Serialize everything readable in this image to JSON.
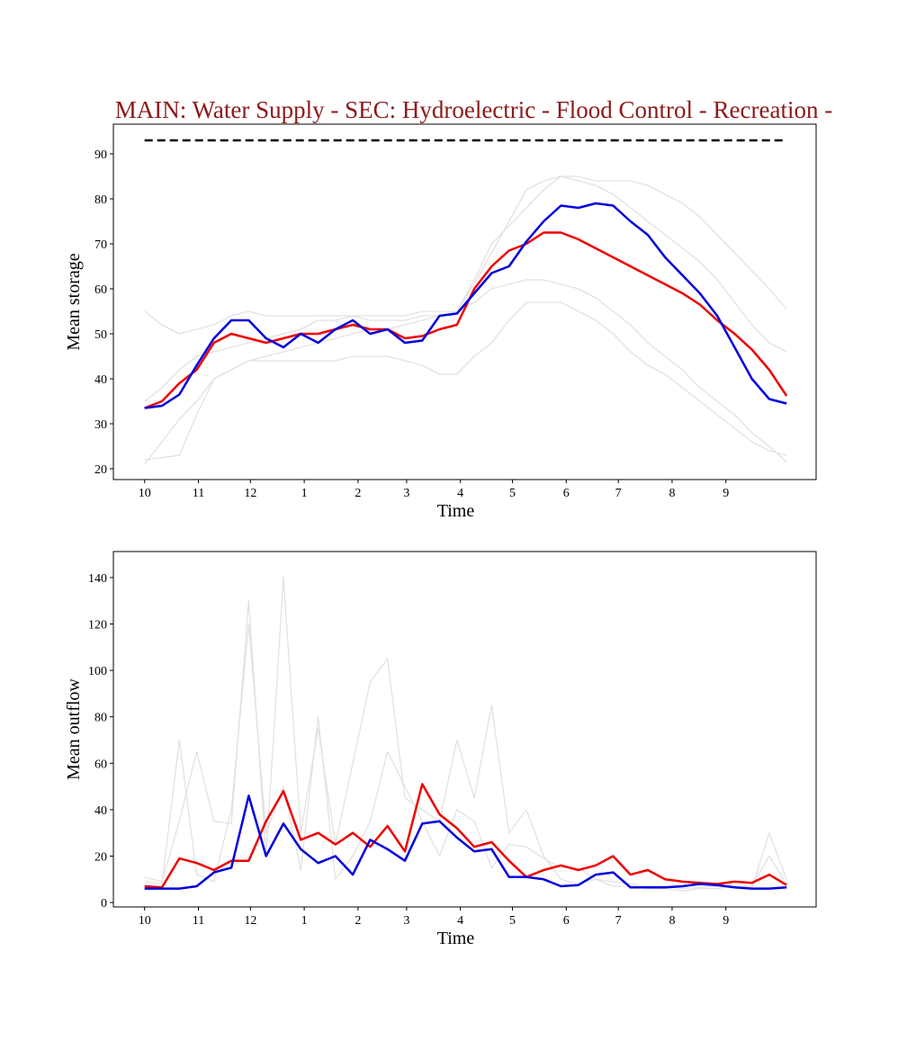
{
  "chart_data": [
    {
      "type": "line",
      "title": "MAIN: Water Supply - SEC: Hydroelectric - Flood Control - Recreation -",
      "title_color": "#8b1a1a",
      "x_label": "Time",
      "y_label": "Mean storage",
      "xlim": [
        -18,
        387
      ],
      "xticks": [
        {
          "value": 0,
          "label": "10"
        },
        {
          "value": 31,
          "label": "11"
        },
        {
          "value": 61,
          "label": "12"
        },
        {
          "value": 92,
          "label": "1"
        },
        {
          "value": 123,
          "label": "2"
        },
        {
          "value": 151,
          "label": "3"
        },
        {
          "value": 182,
          "label": "4"
        },
        {
          "value": 212,
          "label": "5"
        },
        {
          "value": 243,
          "label": "6"
        },
        {
          "value": 273,
          "label": "7"
        },
        {
          "value": 304,
          "label": "8"
        },
        {
          "value": 335,
          "label": "9"
        }
      ],
      "ylim": [
        17.6,
        96.6
      ],
      "yticks": [
        20,
        30,
        40,
        50,
        60,
        70,
        80,
        90
      ],
      "x": [
        0,
        10,
        20,
        30,
        40,
        50,
        60,
        70,
        80,
        90,
        100,
        110,
        120,
        130,
        140,
        150,
        160,
        170,
        180,
        190,
        200,
        210,
        220,
        230,
        240,
        250,
        260,
        270,
        280,
        290,
        300,
        310,
        320,
        330,
        340,
        350,
        360,
        370
      ],
      "series": [
        {
          "color": "#e2e2e2",
          "linewidth": 1.3,
          "values": [
            55,
            52,
            50,
            51,
            52,
            54,
            55,
            54,
            54,
            54,
            54,
            54,
            54,
            53,
            53,
            53,
            54,
            54,
            55,
            62,
            70,
            74,
            78,
            82,
            85,
            85,
            84,
            84,
            84,
            83,
            81,
            79,
            76,
            72,
            68,
            64,
            60,
            55.5
          ]
        },
        {
          "color": "#e2e2e2",
          "linewidth": 1.3,
          "values": [
            22,
            22.5,
            23,
            32,
            40,
            42,
            44,
            45,
            46,
            47,
            48,
            49,
            50,
            51,
            51,
            52,
            53,
            54,
            55,
            57,
            60,
            61,
            62,
            62,
            61,
            60,
            58,
            55,
            52,
            48,
            45,
            42,
            38,
            35,
            32,
            28,
            25,
            21.5
          ]
        },
        {
          "color": "#e2e2e2",
          "linewidth": 1.3,
          "values": [
            21,
            26,
            31,
            35,
            40,
            42,
            44,
            44,
            44,
            44,
            44,
            44,
            45,
            45,
            45,
            44,
            43,
            41,
            41,
            45,
            48,
            53,
            57,
            57,
            57,
            55,
            53,
            50,
            46,
            43,
            41,
            38,
            35,
            32,
            29,
            26,
            24,
            23
          ]
        },
        {
          "color": "#e2e2e2",
          "linewidth": 1.3,
          "values": [
            35,
            38,
            42,
            45,
            46,
            47,
            48,
            49,
            50,
            51,
            53,
            53,
            54,
            54,
            54,
            54,
            55,
            55,
            55,
            61,
            68,
            75,
            82,
            84,
            85,
            84,
            83,
            81,
            78,
            75,
            72,
            69,
            66,
            62,
            57,
            52,
            48,
            46
          ]
        },
        {
          "color": "#000000",
          "linewidth": 2.5,
          "dash": true,
          "values": [
            93,
            93,
            93,
            93,
            93,
            93,
            93,
            93,
            93,
            93,
            93,
            93,
            93,
            93,
            93,
            93,
            93,
            93,
            93,
            93,
            93,
            93,
            93,
            93,
            93,
            93,
            93,
            93,
            93,
            93,
            93,
            93,
            93,
            93,
            93,
            93,
            93,
            93
          ]
        },
        {
          "color": "#ee0000",
          "linewidth": 2.5,
          "values": [
            33.5,
            35,
            39,
            42,
            48,
            50,
            49,
            48,
            49,
            50,
            50,
            51,
            52,
            51,
            51,
            49,
            49.5,
            51,
            52,
            60,
            65,
            68.5,
            70,
            72.5,
            72.5,
            71,
            69,
            67,
            65,
            63,
            61,
            59,
            56.5,
            53,
            50,
            46.5,
            42,
            36.2
          ]
        },
        {
          "color": "#0000dd",
          "linewidth": 2.5,
          "values": [
            33.5,
            34,
            36.5,
            43,
            49,
            53,
            53,
            49,
            47,
            50,
            48,
            51,
            53,
            50,
            51,
            48,
            48.5,
            54,
            54.5,
            59,
            63.5,
            65,
            70.5,
            75,
            78.5,
            78,
            79,
            78.5,
            75,
            72,
            67,
            63,
            59,
            54,
            47,
            40,
            35.5,
            34.5
          ]
        }
      ]
    },
    {
      "type": "line",
      "x_label": "Time",
      "y_label": "Mean outflow",
      "xlim": [
        -18,
        387
      ],
      "xticks": [
        {
          "value": 0,
          "label": "10"
        },
        {
          "value": 31,
          "label": "11"
        },
        {
          "value": 61,
          "label": "12"
        },
        {
          "value": 92,
          "label": "1"
        },
        {
          "value": 123,
          "label": "2"
        },
        {
          "value": 151,
          "label": "3"
        },
        {
          "value": 182,
          "label": "4"
        },
        {
          "value": 212,
          "label": "5"
        },
        {
          "value": 243,
          "label": "6"
        },
        {
          "value": 273,
          "label": "7"
        },
        {
          "value": 304,
          "label": "8"
        },
        {
          "value": 335,
          "label": "9"
        }
      ],
      "ylim": [
        -1.9,
        151.2
      ],
      "yticks": [
        0,
        20,
        40,
        60,
        80,
        100,
        120,
        140
      ],
      "x": [
        0,
        10,
        20,
        30,
        40,
        50,
        60,
        70,
        80,
        90,
        100,
        110,
        120,
        130,
        140,
        150,
        160,
        170,
        180,
        190,
        200,
        210,
        220,
        230,
        240,
        250,
        260,
        270,
        280,
        290,
        300,
        310,
        320,
        330,
        340,
        350,
        360,
        370
      ],
      "series": [
        {
          "color": "#e2e2e2",
          "linewidth": 1.3,
          "values": [
            11,
            9,
            35,
            65,
            35,
            34,
            130,
            20,
            140,
            30,
            75,
            25,
            60,
            95,
            105,
            45,
            40,
            35,
            70,
            45,
            85,
            30,
            40,
            20,
            10,
            8,
            10,
            7,
            7,
            6,
            6,
            5,
            6,
            6,
            7,
            6,
            30,
            10
          ]
        },
        {
          "color": "#e2e2e2",
          "linewidth": 1.3,
          "values": [
            9,
            8,
            70,
            12,
            9,
            40,
            120,
            30,
            50,
            14,
            80,
            10,
            20,
            35,
            65,
            50,
            35,
            20,
            40,
            35,
            15,
            25,
            24,
            19,
            15,
            15,
            10,
            9,
            8,
            7,
            7,
            6,
            6.5,
            7,
            7,
            7,
            20,
            8
          ]
        },
        {
          "color": "#ee0000",
          "linewidth": 2.5,
          "values": [
            7,
            6.5,
            19,
            17,
            14,
            18,
            18,
            35,
            48,
            27,
            30,
            25,
            30,
            24,
            33,
            22,
            51,
            38,
            32,
            24,
            26,
            18,
            11,
            14,
            16,
            14,
            16,
            20,
            12,
            14,
            10,
            9,
            8.5,
            8,
            9,
            8.5,
            12,
            7.5
          ]
        },
        {
          "color": "#0000dd",
          "linewidth": 2.5,
          "values": [
            6,
            6,
            6,
            7,
            13,
            15,
            46,
            20,
            34,
            23,
            17,
            20,
            12,
            27,
            23,
            18,
            34,
            35,
            28,
            22,
            23,
            11,
            11,
            10,
            7,
            7.5,
            12,
            13,
            6.5,
            6.5,
            6.5,
            7,
            8,
            7.5,
            6.5,
            6,
            6,
            6.5
          ]
        }
      ]
    }
  ]
}
